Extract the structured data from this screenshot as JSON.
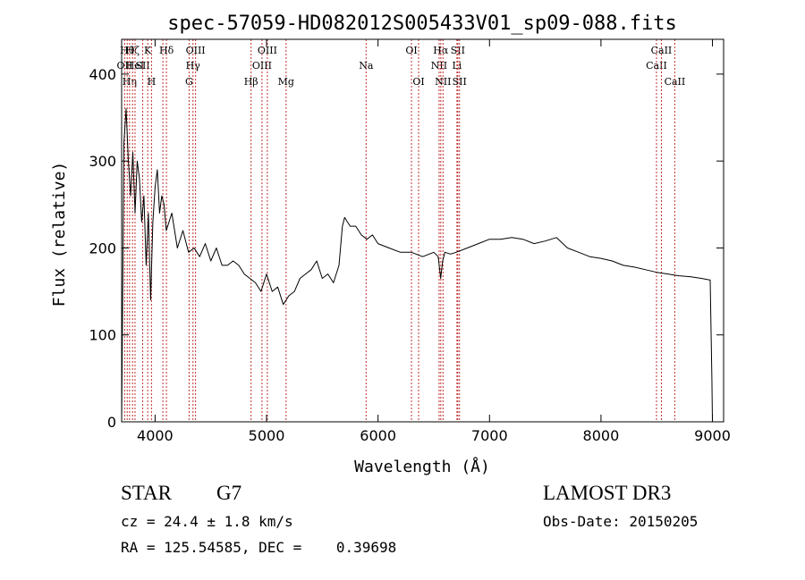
{
  "chart_data": {
    "type": "line",
    "title": "spec-57059-HD082012S005433V01_sp09-088.fits",
    "xlabel": "Wavelength (Å)",
    "ylabel": "Flux (relative)",
    "xlim": [
      3700,
      9100
    ],
    "ylim": [
      0,
      440
    ],
    "x_ticks": [
      4000,
      5000,
      6000,
      7000,
      8000,
      9000
    ],
    "y_ticks": [
      0,
      100,
      200,
      300,
      400
    ],
    "line_color": "#000000",
    "marker_color": "#c03030",
    "series": [
      {
        "x": [
          3700,
          3720,
          3740,
          3760,
          3780,
          3800,
          3820,
          3840,
          3860,
          3880,
          3900,
          3920,
          3940,
          3960,
          3980,
          4000,
          4020,
          4040,
          4060,
          4080,
          4100,
          4150,
          4200,
          4250,
          4300,
          4350,
          4400,
          4450,
          4500,
          4550,
          4600,
          4650,
          4700,
          4750,
          4800,
          4850,
          4900,
          4950,
          5000,
          5050,
          5100,
          5150,
          5200,
          5250,
          5300,
          5350,
          5400,
          5450,
          5500,
          5550,
          5600,
          5650,
          5680,
          5700,
          5750,
          5800,
          5850,
          5900,
          5950,
          6000,
          6100,
          6200,
          6300,
          6400,
          6500,
          6540,
          6562,
          6580,
          6600,
          6650,
          6700,
          6800,
          6900,
          7000,
          7100,
          7200,
          7300,
          7400,
          7500,
          7600,
          7700,
          7800,
          7900,
          8000,
          8100,
          8200,
          8300,
          8400,
          8500,
          8600,
          8700,
          8800,
          8900,
          8980,
          8995,
          9000
        ],
        "y": [
          0,
          320,
          360,
          300,
          260,
          310,
          240,
          300,
          280,
          230,
          260,
          180,
          240,
          140,
          230,
          270,
          290,
          240,
          260,
          250,
          220,
          240,
          200,
          220,
          195,
          200,
          190,
          205,
          185,
          200,
          180,
          180,
          185,
          180,
          170,
          165,
          160,
          150,
          170,
          150,
          155,
          135,
          145,
          150,
          165,
          170,
          175,
          185,
          165,
          170,
          160,
          180,
          225,
          235,
          225,
          225,
          215,
          210,
          215,
          205,
          200,
          195,
          195,
          190,
          195,
          190,
          165,
          185,
          195,
          193,
          195,
          200,
          205,
          210,
          210,
          212,
          210,
          205,
          208,
          212,
          200,
          195,
          190,
          188,
          185,
          180,
          178,
          175,
          172,
          170,
          168,
          167,
          165,
          163,
          50,
          0
        ]
      }
    ],
    "line_markers": [
      {
        "x": 3727,
        "labels": [
          "OII"
        ],
        "row": 1
      },
      {
        "x": 3750,
        "labels": [
          "Hθ"
        ],
        "row": 0
      },
      {
        "x": 3771,
        "labels": [
          "Hη"
        ],
        "row": 2
      },
      {
        "x": 3798,
        "labels": [
          "Hζ"
        ],
        "row": 0
      },
      {
        "x": 3820,
        "labels": [
          "HeI"
        ],
        "row": 1
      },
      {
        "x": 3889,
        "labels": [
          "SII"
        ],
        "row": 1
      },
      {
        "x": 3934,
        "labels": [
          "K"
        ],
        "row": 0
      },
      {
        "x": 3968,
        "labels": [
          "H"
        ],
        "row": 2
      },
      {
        "x": 4102,
        "labels": [
          "Hδ"
        ],
        "row": 0
      },
      {
        "x": 4070,
        "labels": [],
        "row": 1
      },
      {
        "x": 4305,
        "labels": [
          "G"
        ],
        "row": 2
      },
      {
        "x": 4340,
        "labels": [
          "Hγ"
        ],
        "row": 1
      },
      {
        "x": 4363,
        "labels": [
          "OIII"
        ],
        "row": 0
      },
      {
        "x": 4861,
        "labels": [
          "Hβ"
        ],
        "row": 2
      },
      {
        "x": 4959,
        "labels": [
          "OIII"
        ],
        "row": 1
      },
      {
        "x": 5007,
        "labels": [
          "OIII"
        ],
        "row": 0
      },
      {
        "x": 5175,
        "labels": [
          "Mg"
        ],
        "row": 2
      },
      {
        "x": 5893,
        "labels": [
          "Na"
        ],
        "row": 1
      },
      {
        "x": 6300,
        "labels": [
          "OI"
        ],
        "row": 0
      },
      {
        "x": 6364,
        "labels": [
          "OI"
        ],
        "row": 2
      },
      {
        "x": 6548,
        "labels": [
          "NII"
        ],
        "row": 1
      },
      {
        "x": 6563,
        "labels": [
          "Hα"
        ],
        "row": 0
      },
      {
        "x": 6583,
        "labels": [
          "NII"
        ],
        "row": 2
      },
      {
        "x": 6708,
        "labels": [
          "Li"
        ],
        "row": 1
      },
      {
        "x": 6716,
        "labels": [
          "SII"
        ],
        "row": 0
      },
      {
        "x": 6731,
        "labels": [
          "SII"
        ],
        "row": 2
      },
      {
        "x": 8498,
        "labels": [
          "CaII"
        ],
        "row": 1
      },
      {
        "x": 8542,
        "labels": [
          "CaII"
        ],
        "row": 0
      },
      {
        "x": 8662,
        "labels": [
          "CaII"
        ],
        "row": 2
      }
    ]
  },
  "info": {
    "object_class": "STAR",
    "subclass": "G7",
    "survey": "LAMOST DR3",
    "cz": "cz = 24.4 ± 1.8 km/s",
    "obs_date": "Obs-Date: 20150205",
    "coords": "RA = 125.54585, DEC =    0.39698"
  }
}
